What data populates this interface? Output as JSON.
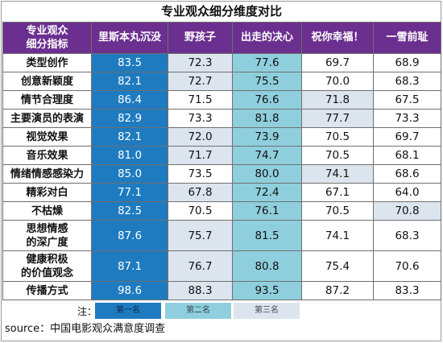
{
  "title": "专业观众细分维度对比",
  "header": {
    "label_line1": "专业观众",
    "label_line2": "细分指标",
    "films": [
      "里斯本丸沉没",
      "野孩子",
      "出走的决心",
      "祝你幸福！",
      "一雪前耻"
    ]
  },
  "rows": [
    {
      "label": "类型创作",
      "values": [
        "83.5",
        "72.3",
        "77.6",
        "69.7",
        "68.9"
      ]
    },
    {
      "label": "创意新颖度",
      "values": [
        "82.1",
        "72.7",
        "75.5",
        "70.0",
        "68.3"
      ]
    },
    {
      "label": "情节合理度",
      "values": [
        "86.4",
        "71.5",
        "76.6",
        "71.8",
        "67.5"
      ]
    },
    {
      "label": "主要演员的表演",
      "values": [
        "82.9",
        "73.3",
        "81.8",
        "77.7",
        "73.3"
      ]
    },
    {
      "label": "视觉效果",
      "values": [
        "82.1",
        "72.0",
        "73.9",
        "70.5",
        "69.7"
      ]
    },
    {
      "label": "音乐效果",
      "values": [
        "81.0",
        "71.7",
        "74.7",
        "70.5",
        "68.1"
      ]
    },
    {
      "label": "情绪情感感染力",
      "values": [
        "85.0",
        "73.5",
        "80.0",
        "74.1",
        "68.6"
      ]
    },
    {
      "label": "精彩对白",
      "values": [
        "77.1",
        "67.8",
        "72.4",
        "67.1",
        "64.0"
      ]
    },
    {
      "label": "不枯燥",
      "values": [
        "82.5",
        "70.5",
        "76.1",
        "70.5",
        "70.8"
      ]
    },
    {
      "label_line1": "思想情感",
      "label_line2": "的深广度",
      "values": [
        "87.6",
        "75.7",
        "81.5",
        "74.1",
        "68.3"
      ]
    },
    {
      "label_line1": "健康积极",
      "label_line2": "的价值观念",
      "values": [
        "87.1",
        "76.7",
        "80.8",
        "75.4",
        "70.6"
      ]
    },
    {
      "label": "传播方式",
      "values": [
        "98.6",
        "88.3",
        "93.5",
        "87.2",
        "83.3"
      ]
    }
  ],
  "legend": {
    "label": "注：",
    "first": "第一名",
    "second": "第二名",
    "third": "第三名",
    "colors": {
      "first": "#1f7bbf",
      "second": "#8fcfdd",
      "third": "#dce5ee"
    }
  },
  "source": "source：中国电影观众满意度调查"
}
